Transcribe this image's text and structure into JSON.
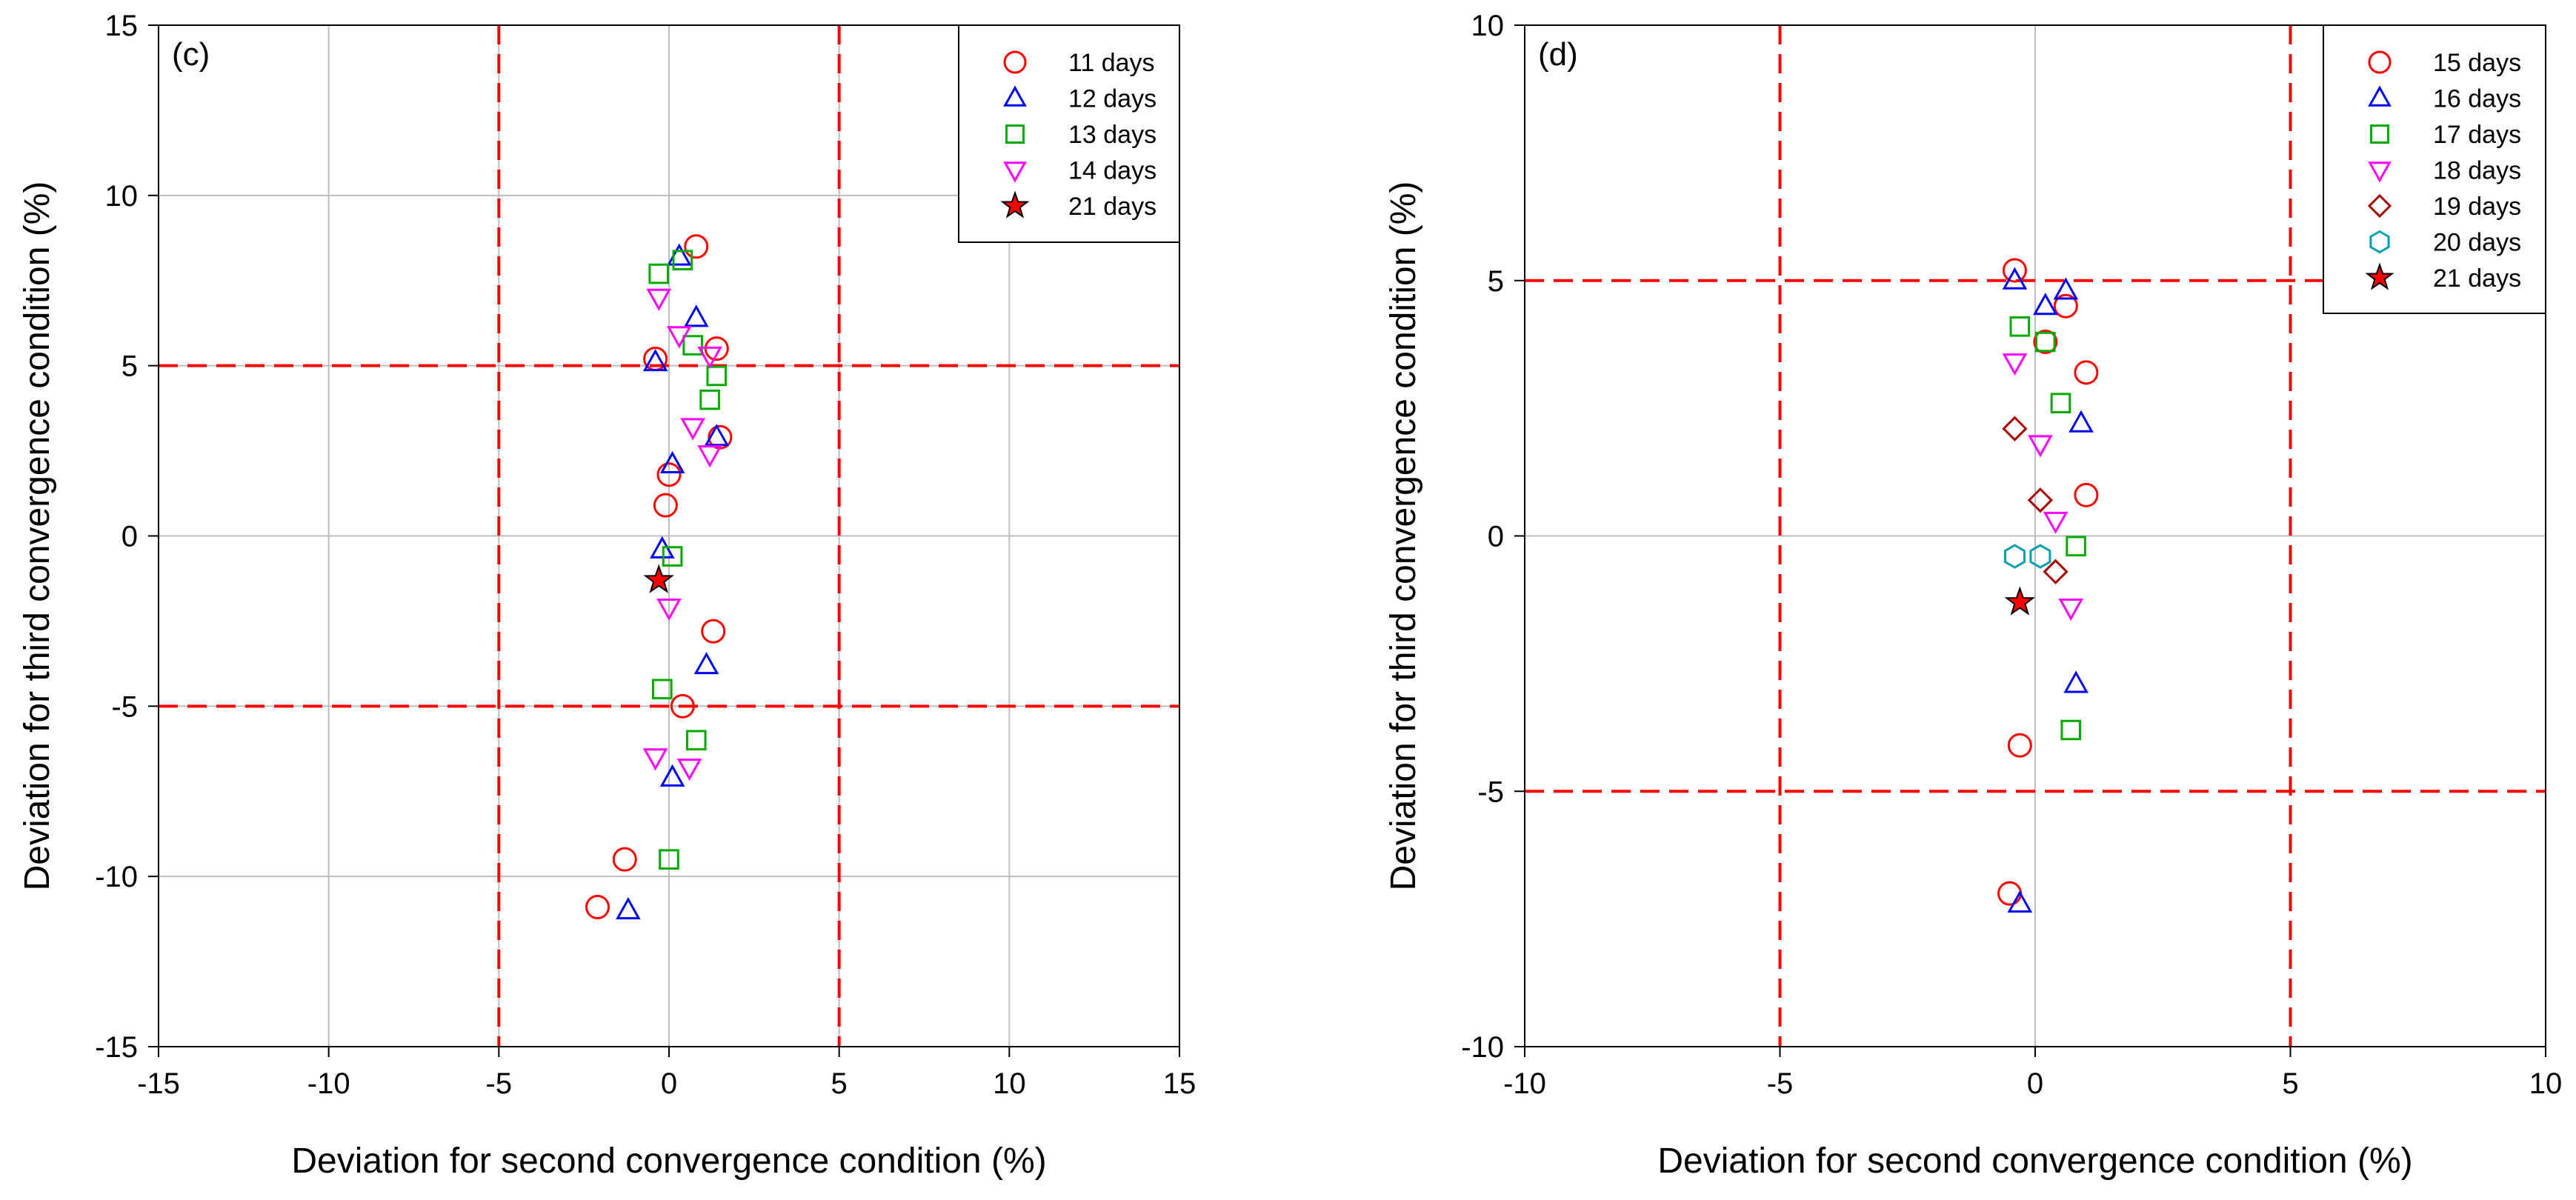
{
  "chart_data": [
    {
      "type": "scatter",
      "panel_label": "(c)",
      "xlabel": "Deviation for second convergence condition (%)",
      "ylabel": "Deviation for third convergence condition (%)",
      "xlim": [
        -15,
        15
      ],
      "ylim": [
        -15,
        15
      ],
      "xticks": [
        -15,
        -10,
        -5,
        0,
        5,
        10,
        15
      ],
      "yticks": [
        -15,
        -10,
        -5,
        0,
        5,
        10,
        15
      ],
      "grid": true,
      "gridlines": [
        -10,
        -5,
        0,
        5,
        10
      ],
      "thresholds": {
        "x": [
          -5,
          5
        ],
        "y": [
          -5,
          5
        ]
      },
      "legend_position": "top-right",
      "series": [
        {
          "name": "11 days",
          "marker": "circle",
          "color": "#ff0000",
          "points": [
            [
              0.8,
              8.5
            ],
            [
              -0.4,
              5.2
            ],
            [
              1.4,
              5.5
            ],
            [
              1.5,
              2.9
            ],
            [
              0,
              1.8
            ],
            [
              -0.1,
              0.9
            ],
            [
              1.3,
              -2.8
            ],
            [
              0.4,
              -5
            ],
            [
              -1.3,
              -9.5
            ],
            [
              -2.1,
              -10.9
            ]
          ]
        },
        {
          "name": "12 days",
          "marker": "triangle-up",
          "color": "#0000ff",
          "points": [
            [
              0.3,
              8.2
            ],
            [
              0.8,
              6.4
            ],
            [
              -0.4,
              5.1
            ],
            [
              1.4,
              2.9
            ],
            [
              0.1,
              2.1
            ],
            [
              -0.2,
              -0.4
            ],
            [
              1.1,
              -3.8
            ],
            [
              0.1,
              -7.1
            ],
            [
              -1.2,
              -11
            ]
          ]
        },
        {
          "name": "13 days",
          "marker": "square",
          "color": "#00aa00",
          "points": [
            [
              -0.3,
              7.7
            ],
            [
              0.4,
              8.1
            ],
            [
              0.7,
              5.6
            ],
            [
              1.4,
              4.7
            ],
            [
              1.2,
              4
            ],
            [
              0.1,
              -0.6
            ],
            [
              -0.2,
              -4.5
            ],
            [
              0.8,
              -6
            ],
            [
              0,
              -9.5
            ]
          ]
        },
        {
          "name": "14 days",
          "marker": "triangle-down",
          "color": "#ff00ff",
          "points": [
            [
              -0.3,
              7
            ],
            [
              0.3,
              5.9
            ],
            [
              1.2,
              5.3
            ],
            [
              0.7,
              3.2
            ],
            [
              1.2,
              2.4
            ],
            [
              0,
              -2.1
            ],
            [
              -0.4,
              -6.5
            ],
            [
              0.6,
              -6.8
            ]
          ]
        },
        {
          "name": "21 days",
          "marker": "star",
          "color": "#ff0000",
          "points": [
            [
              -0.3,
              -1.3
            ]
          ]
        }
      ]
    },
    {
      "type": "scatter",
      "panel_label": "(d)",
      "xlabel": "Deviation for second convergence condition (%)",
      "ylabel": "Deviation for third convergence condition (%)",
      "xlim": [
        -10,
        10
      ],
      "ylim": [
        -10,
        10
      ],
      "xticks": [
        -10,
        -5,
        0,
        5,
        10
      ],
      "yticks": [
        -10,
        -5,
        0,
        5,
        10
      ],
      "grid": true,
      "gridlines": [
        0
      ],
      "thresholds": {
        "x": [
          -5,
          5
        ],
        "y": [
          -5,
          5
        ]
      },
      "legend_position": "top-right",
      "series": [
        {
          "name": "15 days",
          "marker": "circle",
          "color": "#ff0000",
          "points": [
            [
              -0.4,
              5.2
            ],
            [
              0.6,
              4.5
            ],
            [
              0.2,
              3.8
            ],
            [
              1,
              3.2
            ],
            [
              1,
              0.8
            ],
            [
              -0.3,
              -4.1
            ],
            [
              -0.5,
              -7
            ]
          ]
        },
        {
          "name": "16 days",
          "marker": "triangle-up",
          "color": "#0000ff",
          "points": [
            [
              -0.4,
              5
            ],
            [
              0.6,
              4.8
            ],
            [
              0.2,
              4.5
            ],
            [
              0.9,
              2.2
            ],
            [
              0.8,
              -2.9
            ],
            [
              -0.3,
              -7.2
            ]
          ]
        },
        {
          "name": "17 days",
          "marker": "square",
          "color": "#00aa00",
          "points": [
            [
              -0.3,
              4.1
            ],
            [
              0.2,
              3.8
            ],
            [
              0.5,
              2.6
            ],
            [
              0.8,
              -0.2
            ],
            [
              0.7,
              -3.8
            ]
          ]
        },
        {
          "name": "18 days",
          "marker": "triangle-down",
          "color": "#ff00ff",
          "points": [
            [
              -0.4,
              3.4
            ],
            [
              0.1,
              1.8
            ],
            [
              0.4,
              0.3
            ],
            [
              0.7,
              -1.4
            ]
          ]
        },
        {
          "name": "19 days",
          "marker": "diamond",
          "color": "#aa0000",
          "points": [
            [
              -0.4,
              2.1
            ],
            [
              0.1,
              0.7
            ],
            [
              0.4,
              -0.7
            ]
          ]
        },
        {
          "name": "20 days",
          "marker": "hexagon",
          "color": "#00a0b0",
          "points": [
            [
              -0.4,
              -0.4
            ],
            [
              0.1,
              -0.4
            ]
          ]
        },
        {
          "name": "21 days",
          "marker": "star",
          "color": "#ff0000",
          "points": [
            [
              -0.3,
              -1.3
            ]
          ]
        }
      ]
    }
  ]
}
